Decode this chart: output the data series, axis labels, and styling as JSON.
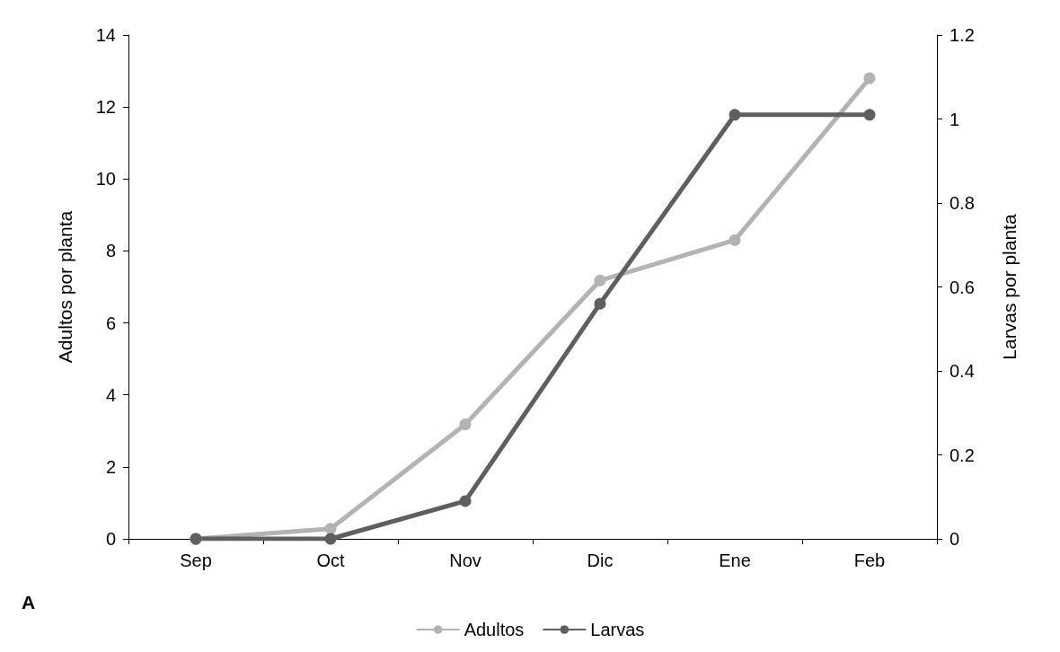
{
  "chart_data": {
    "type": "line",
    "categories": [
      "Sep",
      "Oct",
      "Nov",
      "Dic",
      "Ene",
      "Feb"
    ],
    "ylabel": "Adultos por planta",
    "y2label": "Larvas por planta",
    "ylim": [
      0,
      14
    ],
    "yticks": [
      0,
      2,
      4,
      6,
      8,
      10,
      12,
      14
    ],
    "y2lim": [
      0,
      1.2
    ],
    "y2ticks": [
      0,
      0.2,
      0.4,
      0.6,
      0.8,
      1,
      1.2
    ],
    "series": [
      {
        "name": "Adultos",
        "color": "#b3b3b3",
        "values": [
          0,
          0.28,
          3.18,
          7.18,
          8.3,
          12.8
        ]
      },
      {
        "name": "Larvas",
        "color": "#5f5f5f",
        "axis": "y2",
        "values": [
          0,
          0,
          0.09,
          0.56,
          1.01,
          1.01
        ]
      }
    ],
    "annotations": [
      "A"
    ],
    "legend": "bottom",
    "grid": false,
    "marker": "circle",
    "line_style": "solid"
  }
}
